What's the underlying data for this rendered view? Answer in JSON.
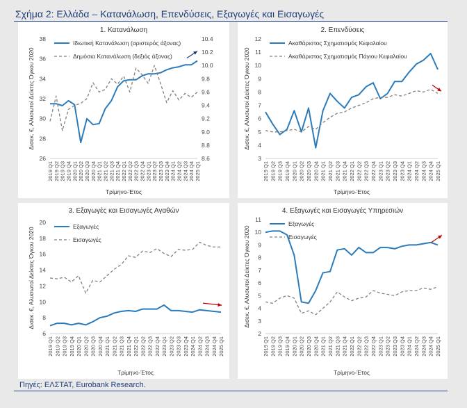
{
  "page": {
    "title": "Σχήμα 2: Ελλάδα – Κατανάλωση, Επενδύσεις, Εξαγωγές και Εισαγωγές",
    "source": "Πηγές: ΕΛΣΤΑΤ, Eurobank Research."
  },
  "colors": {
    "blue": "#2b7bba",
    "grey": "#7f7f7f",
    "arrow_blue": "#1f3f7a",
    "arrow_red": "#c00000"
  },
  "chart_data": [
    {
      "id": "panel1",
      "type": "line",
      "title": "1. Κατανάλωση",
      "xlabel": "Τρίμηνο-Έτος",
      "ylabel": "Δισεκ. €, Αλυσωτοί Δείκτες Όγκου 2020",
      "ylim": [
        26,
        38
      ],
      "yticks": [
        26,
        28,
        30,
        32,
        34,
        36,
        38
      ],
      "ylim_right": [
        8.6,
        10.4
      ],
      "yticks_right": [
        "8.6",
        "8.8",
        "9.0",
        "9.2",
        "9.4",
        "9.6",
        "9.8",
        "10.0",
        "10.2",
        "10.4"
      ],
      "categories": [
        "2019 Q1",
        "2019 Q2",
        "2019 Q3",
        "2019 Q4",
        "2020 Q1",
        "2020 Q2",
        "2020 Q3",
        "2020 Q4",
        "2021 Q1",
        "2021 Q2",
        "2021 Q3",
        "2021 Q4",
        "2022 Q1",
        "2022 Q2",
        "2022 Q3",
        "2022 Q4",
        "2023 Q1",
        "2023 Q2",
        "2023 Q3",
        "2023 Q4",
        "2024 Q1",
        "2024 Q2",
        "2024 Q3",
        "2024 Q4",
        "2025 Q1"
      ],
      "legend_position": "top",
      "arrow": "up",
      "series": [
        {
          "name": "Ιδιωτική Κατανάλωση (αριστερός άξονας)",
          "axis": "left",
          "style": "solid",
          "values": [
            31.5,
            31.5,
            31.3,
            31.8,
            31.4,
            27.6,
            30.0,
            29.4,
            29.5,
            31.0,
            31.8,
            33.2,
            33.8,
            33.9,
            33.9,
            34.3,
            34.5,
            34.5,
            34.6,
            34.9,
            35.1,
            35.2,
            35.4,
            35.4,
            35.8
          ]
        },
        {
          "name": "Δημόσια Κατανάλωση (δεξιός άξονας)",
          "axis": "right",
          "style": "dashed",
          "values": [
            9.16,
            9.54,
            9.02,
            9.34,
            9.4,
            9.43,
            9.5,
            9.74,
            9.6,
            9.64,
            9.8,
            9.72,
            9.84,
            9.6,
            9.96,
            9.86,
            9.73,
            10.0,
            9.73,
            9.44,
            9.62,
            9.48,
            9.58,
            9.52,
            9.6
          ]
        }
      ]
    },
    {
      "id": "panel2",
      "type": "line",
      "title": "2. Επενδύσεις",
      "xlabel": "Τρίμηνο-Έτος",
      "ylabel": "Δισεκ. €, Αλυσωτοί Δείκτες Όγκου 2020",
      "ylim": [
        3,
        12
      ],
      "yticks": [
        3,
        4,
        5,
        6,
        7,
        8,
        9,
        10,
        11,
        12
      ],
      "categories": [
        "2019 Q1",
        "2019 Q2",
        "2019 Q3",
        "2019 Q4",
        "2020 Q1",
        "2020 Q2",
        "2020 Q3",
        "2020 Q4",
        "2021 Q1",
        "2021 Q2",
        "2021 Q3",
        "2021 Q4",
        "2022 Q1",
        "2022 Q2",
        "2022 Q3",
        "2022 Q4",
        "2023 Q1",
        "2023 Q2",
        "2023 Q3",
        "2023 Q4",
        "2024 Q1",
        "2024 Q2",
        "2024 Q3",
        "2024 Q4",
        "2025 Q1"
      ],
      "legend_position": "top",
      "arrow": "down",
      "series": [
        {
          "name": "Ακαθάριστος Σχηματισμός Κεφαλαίου",
          "style": "solid",
          "values": [
            6.5,
            5.6,
            4.8,
            5.2,
            6.6,
            5.0,
            6.8,
            3.8,
            6.6,
            7.9,
            7.3,
            6.8,
            7.6,
            7.8,
            8.4,
            8.7,
            7.5,
            7.9,
            8.8,
            8.8,
            9.5,
            10.1,
            10.4,
            10.9,
            9.7
          ]
        },
        {
          "name": "Ακαθάριστος Σχηματισμός Πάγιου Κεφαλαίου",
          "style": "dashed",
          "values": [
            5.1,
            5.0,
            5.0,
            5.1,
            5.2,
            5.0,
            5.4,
            5.2,
            5.7,
            6.1,
            6.4,
            6.5,
            6.8,
            7.0,
            7.2,
            7.5,
            7.6,
            7.6,
            7.8,
            7.7,
            7.9,
            8.1,
            8.0,
            8.2,
            7.9
          ]
        }
      ]
    },
    {
      "id": "panel3",
      "type": "line",
      "title": "3. Εξαγωγές και Εισαγωγές Αγαθών",
      "xlabel": "Τρίμηνο-Έτος",
      "ylabel": "Δισεκ. €, Αλυσωτοί Δείκτες Όγκου 2020",
      "ylim": [
        6,
        20
      ],
      "yticks": [
        6,
        8,
        10,
        12,
        14,
        16,
        18,
        20
      ],
      "categories": [
        "2019 Q1",
        "2019 Q2",
        "2019 Q3",
        "2019 Q4",
        "2020 Q1",
        "2020 Q2",
        "2020 Q3",
        "2020 Q4",
        "2021 Q1",
        "2021 Q2",
        "2021 Q3",
        "2021 Q4",
        "2022 Q1",
        "2022 Q2",
        "2022 Q3",
        "2022 Q4",
        "2023 Q1",
        "2023 Q2",
        "2023 Q3",
        "2023 Q4",
        "2024 Q1",
        "2024 Q2",
        "2024 Q3",
        "2024 Q4",
        "2025 Q1"
      ],
      "legend_position": "top-left",
      "arrow": "flat",
      "series": [
        {
          "name": "Εξαγωγές",
          "style": "solid",
          "values": [
            7.0,
            7.3,
            7.3,
            7.1,
            7.3,
            7.1,
            7.5,
            8.0,
            8.2,
            8.6,
            8.8,
            8.9,
            8.8,
            9.1,
            9.1,
            9.1,
            9.6,
            8.9,
            8.9,
            8.8,
            8.7,
            9.0,
            8.9,
            8.8,
            8.7
          ]
        },
        {
          "name": "Εισαγωγές",
          "style": "dashed",
          "values": [
            13.0,
            12.9,
            13.1,
            12.5,
            13.3,
            11.1,
            12.7,
            12.5,
            13.3,
            14.1,
            14.7,
            15.8,
            15.6,
            16.4,
            16.2,
            16.7,
            16.1,
            15.7,
            16.6,
            16.5,
            16.6,
            17.5,
            17.1,
            16.9,
            16.9
          ]
        }
      ]
    },
    {
      "id": "panel4",
      "type": "line",
      "title": "4. Εξαγωγές και Εισαγωγές Υπηρεσιών",
      "xlabel": "Τρίμηνο-Έτος",
      "ylabel": "Δισεκ. €, Αλυσωτοί Δείκτες Όγκου 2020",
      "ylim": [
        2,
        11
      ],
      "yticks": [
        2,
        3,
        4,
        5,
        6,
        7,
        8,
        9,
        10,
        11
      ],
      "categories": [
        "2019 Q1",
        "2019 Q2",
        "2019 Q3",
        "2019 Q4",
        "2020 Q1",
        "2020 Q2",
        "2020 Q3",
        "2020 Q4",
        "2021 Q1",
        "2021 Q2",
        "2021 Q3",
        "2021 Q4",
        "2022 Q1",
        "2022 Q2",
        "2022 Q3",
        "2022 Q4",
        "2023 Q1",
        "2023 Q2",
        "2023 Q3",
        "2023 Q4",
        "2024 Q1",
        "2024 Q2",
        "2024 Q3",
        "2024 Q4",
        "2025 Q1"
      ],
      "legend_position": "top-left",
      "arrow": "up",
      "series": [
        {
          "name": "Εξαγωγές",
          "style": "solid",
          "values": [
            10.0,
            10.1,
            10.1,
            9.8,
            8.2,
            4.5,
            4.4,
            5.4,
            6.8,
            6.9,
            8.6,
            8.7,
            8.2,
            8.8,
            8.4,
            8.4,
            8.8,
            8.8,
            8.7,
            8.9,
            9.0,
            9.0,
            9.1,
            9.2,
            9.0
          ]
        },
        {
          "name": "Εισαγωγές",
          "style": "dashed",
          "values": [
            4.5,
            4.4,
            4.8,
            5.0,
            4.8,
            3.6,
            3.8,
            3.5,
            4.0,
            4.5,
            5.3,
            4.9,
            4.6,
            4.8,
            4.9,
            5.4,
            5.2,
            5.1,
            5.0,
            5.3,
            5.4,
            5.4,
            5.6,
            5.5,
            5.7
          ]
        }
      ]
    }
  ]
}
